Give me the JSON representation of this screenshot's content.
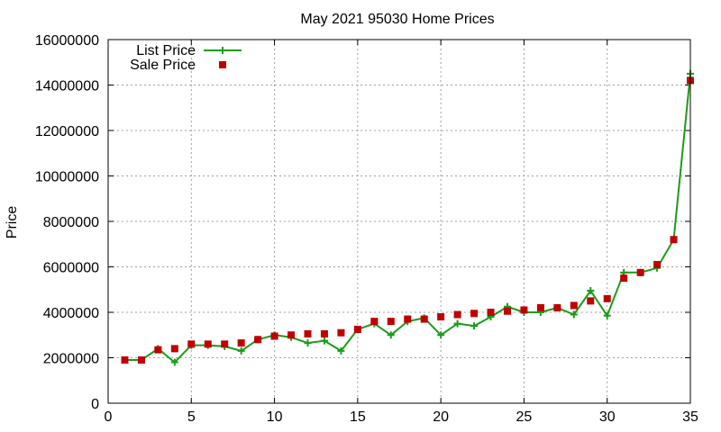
{
  "chart_data": {
    "type": "line",
    "title": "May 2021 95030 Home Prices",
    "xlabel": "",
    "ylabel": "Price",
    "xlim": [
      0,
      35
    ],
    "ylim": [
      0,
      16000000
    ],
    "x_ticks": [
      "0",
      "5",
      "10",
      "15",
      "20",
      "25",
      "30",
      "35"
    ],
    "y_ticks": [
      "0",
      "2000000",
      "4000000",
      "6000000",
      "8000000",
      "10000000",
      "12000000",
      "14000000",
      "16000000"
    ],
    "grid": true,
    "legend_position": "top-left",
    "x": [
      1,
      2,
      3,
      4,
      5,
      6,
      7,
      8,
      9,
      10,
      11,
      12,
      13,
      14,
      15,
      16,
      17,
      18,
      19,
      20,
      21,
      22,
      23,
      24,
      25,
      26,
      27,
      28,
      29,
      30,
      31,
      32,
      33,
      34,
      35
    ],
    "series": [
      {
        "name": "List Price",
        "style": "line-plus",
        "color": "#1a9c1a",
        "values": [
          1900000,
          1900000,
          2400000,
          1800000,
          2550000,
          2550000,
          2500000,
          2300000,
          2800000,
          3000000,
          2900000,
          2650000,
          2750000,
          2300000,
          3250000,
          3500000,
          3000000,
          3600000,
          3750000,
          3000000,
          3500000,
          3400000,
          3800000,
          4250000,
          4000000,
          4000000,
          4200000,
          3900000,
          4950000,
          3850000,
          5750000,
          5750000,
          5950000,
          7200000,
          14500000
        ]
      },
      {
        "name": "Sale Price",
        "style": "points-square",
        "color": "#c00000",
        "values": [
          1900000,
          1900000,
          2350000,
          2400000,
          2600000,
          2600000,
          2600000,
          2650000,
          2800000,
          2950000,
          3000000,
          3050000,
          3050000,
          3100000,
          3250000,
          3600000,
          3600000,
          3700000,
          3700000,
          3800000,
          3900000,
          3950000,
          4000000,
          4050000,
          4100000,
          4200000,
          4200000,
          4300000,
          4500000,
          4600000,
          5500000,
          5750000,
          6100000,
          7200000,
          14200000
        ]
      }
    ]
  }
}
